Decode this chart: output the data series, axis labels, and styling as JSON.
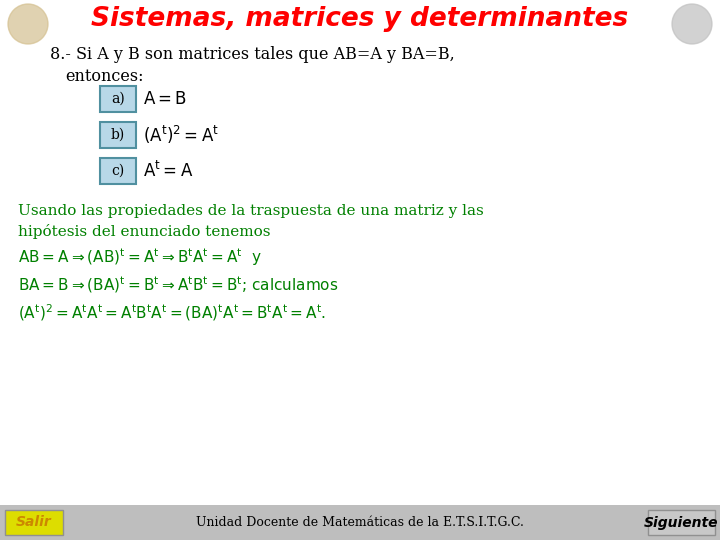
{
  "title": "Sistemas, matrices y determinantes",
  "title_color": "#FF0000",
  "bg_color": "#FFFFFF",
  "main_text_color": "#000000",
  "green_color": "#008000",
  "box_fill": "#B8D8E8",
  "box_border": "#5090A0",
  "header_bg": "#FFFFFF",
  "footer_bg": "#BEBEBE",
  "footer_text": "Unidad Docente de Matemáticas de la E.T.S.I.T.G.C.",
  "salir_text": "Salir",
  "siguiente_text": "Siguiente",
  "salir_color": "#DDDD00",
  "salir_text_color": "#CC8800",
  "problem_line": "8.- Si A y B son matrices tales que AB=A y BA=B,",
  "entonces": "entonces:",
  "option_a_label": "a)",
  "option_b_label": "b)",
  "option_c_label": "c)",
  "solution_text1": "Usando las propiedades de la traspuesta de una matriz y las",
  "solution_text2": "hipótesis del enunciado tenemos"
}
